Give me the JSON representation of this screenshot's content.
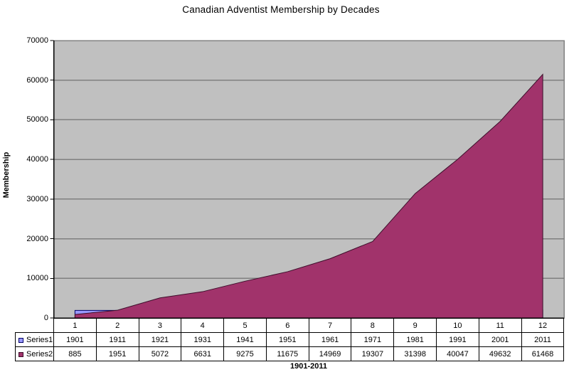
{
  "title": "Canadian Adventist Membership by Decades",
  "y_axis": {
    "label": "Membership",
    "tick_labels": [
      "0",
      "10000",
      "20000",
      "30000",
      "40000",
      "50000",
      "60000",
      "70000"
    ]
  },
  "x_axis": {
    "label": "1901-2011",
    "category_labels": [
      "1",
      "2",
      "3",
      "4",
      "5",
      "6",
      "7",
      "8",
      "9",
      "10",
      "11",
      "12"
    ]
  },
  "colors": {
    "plot_background": "#c0c0c0",
    "gridline": "#808080",
    "axis": "#000000",
    "series1_fill": "#9999ff",
    "series1_stroke": "#000066",
    "series2_fill": "#a1336b",
    "series2_stroke": "#3d0f2b"
  },
  "chart_data": {
    "type": "area",
    "title": "Canadian Adventist Membership by Decades",
    "xlabel": "1901-2011",
    "ylabel": "Membership",
    "categories": [
      "1",
      "2",
      "3",
      "4",
      "5",
      "6",
      "7",
      "8",
      "9",
      "10",
      "11",
      "12"
    ],
    "series": [
      {
        "name": "Series1",
        "values": [
          1901,
          1911,
          1921,
          1931,
          1941,
          1951,
          1961,
          1971,
          1981,
          1991,
          2001,
          2011
        ]
      },
      {
        "name": "Series2",
        "values": [
          885,
          1951,
          5072,
          6631,
          9275,
          11675,
          14969,
          19307,
          31398,
          40047,
          49632,
          61468
        ]
      }
    ],
    "ylim": [
      0,
      70000
    ],
    "ytick_step": 10000,
    "grid": true,
    "legend_position": "data-table-left",
    "plot_area_background": "gray"
  }
}
